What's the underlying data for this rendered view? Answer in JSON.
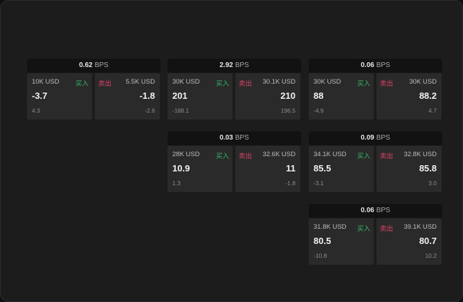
{
  "labels": {
    "unit": "BPS",
    "buy": "买入",
    "sell": "卖出"
  },
  "tiles": [
    {
      "spread": "0.62",
      "bid": {
        "amount": "10K USD",
        "price": "-3.7",
        "change": "4.3"
      },
      "ask": {
        "amount": "5.5K USD",
        "price": "-1.8",
        "change": "-2.6"
      }
    },
    {
      "spread": "2.92",
      "bid": {
        "amount": "30K USD",
        "price": "201",
        "change": "-188.1"
      },
      "ask": {
        "amount": "30.1K USD",
        "price": "210",
        "change": "196.5"
      }
    },
    {
      "spread": "0.06",
      "bid": {
        "amount": "30K USD",
        "price": "88",
        "change": "-4.9"
      },
      "ask": {
        "amount": "30K USD",
        "price": "88.2",
        "change": "4.7"
      }
    },
    {
      "spread": "0.03",
      "bid": {
        "amount": "28K USD",
        "price": "10.9",
        "change": "1.3"
      },
      "ask": {
        "amount": "32.6K USD",
        "price": "11",
        "change": "-1.8"
      }
    },
    {
      "spread": "0.09",
      "bid": {
        "amount": "34.1K USD",
        "price": "85.5",
        "change": "-3.1"
      },
      "ask": {
        "amount": "32.8K USD",
        "price": "85.8",
        "change": "3.0"
      }
    },
    {
      "spread": "0.06",
      "bid": {
        "amount": "31.8K USD",
        "price": "80.5",
        "change": "-10.8"
      },
      "ask": {
        "amount": "39.1K USD",
        "price": "80.7",
        "change": "10.2"
      }
    }
  ]
}
